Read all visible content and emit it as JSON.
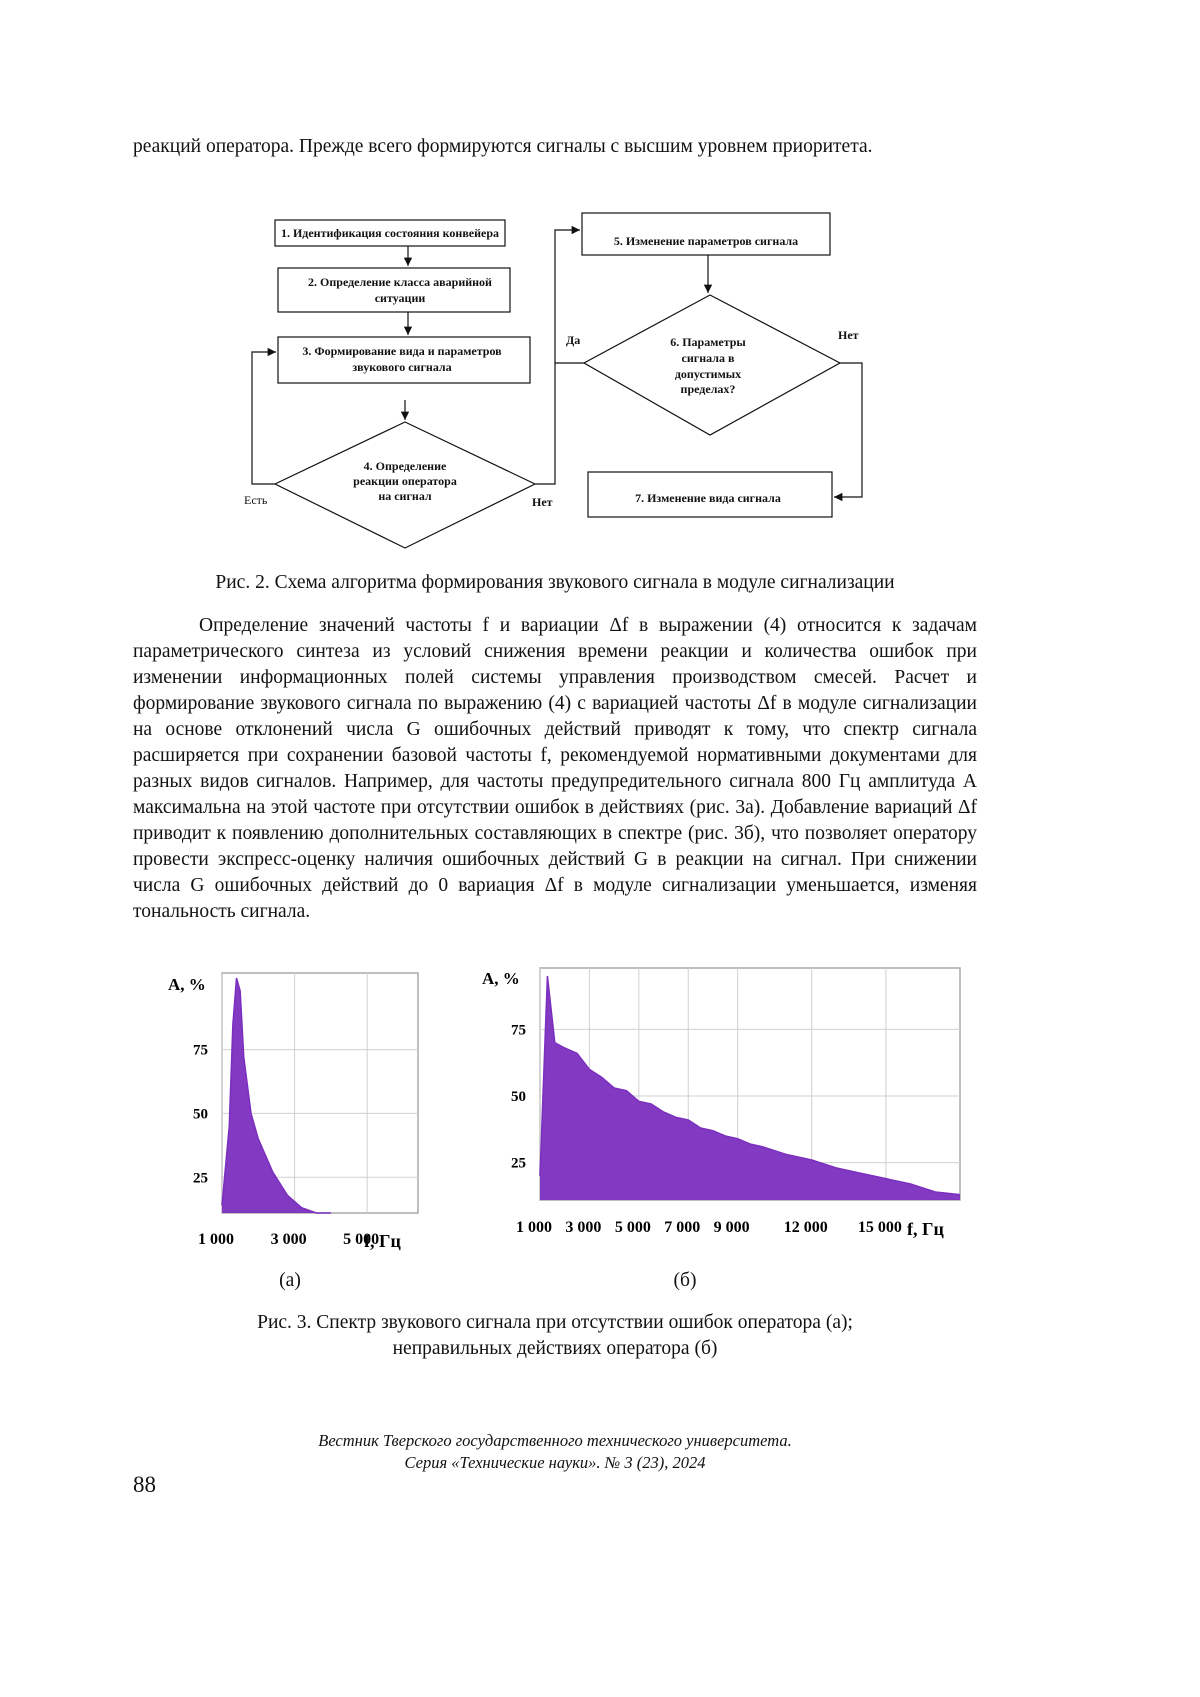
{
  "paragraphs": [
    "реакций оператора. Прежде всего формируются сигналы с высшим уровнем приоритета.",
    "Определение значений частоты f и вариации Δf в выражении (4) относится к задачам параметрического синтеза из условий снижения времени реакции и количества ошибок при изменении информационных полей системы управления производством смесей. Расчет и формирование звукового сигнала по выражению (4) с вариацией частоты Δf в модуле сигнализации на основе отклонений числа G ошибочных действий приводят к тому, что спектр сигнала расширяется при сохранении базовой частоты f, рекомендуемой нормативными документами для разных видов сигналов. Например, для частоты предупредительного сигнала 800 Гц амплитуда A максимальна на этой частоте при отсутствии ошибок в действиях (рис. 3а). Добавление вариаций Δf приводит к появлению дополнительных составляющих в спектре (рис. 3б), что позволяет оператору провести экспресс-оценку наличия ошибочных действий G в реакции на сигнал. При снижении числа G ошибочных действий до 0 вариация Δf в модуле сигнализации уменьшается, изменяя тональность сигнала."
  ],
  "figure2": {
    "nodes": [
      {
        "lines": [
          "1. Идентификация состояния конвейера"
        ]
      },
      {
        "lines": [
          "2. Определение  класса аварийной",
          "ситуации"
        ]
      },
      {
        "lines": [
          "3. Формирование вида и параметров",
          "звукового сигнала"
        ]
      },
      {
        "lines": [
          "4. Определение",
          "реакции оператора",
          "на сигнал"
        ]
      },
      {
        "lines": [
          "5. Изменение параметров сигнала"
        ]
      },
      {
        "lines": [
          "6. Параметры",
          "сигнала в",
          "допустимых",
          "пределах?"
        ]
      },
      {
        "lines": [
          "7. Изменение вида сигнала"
        ]
      }
    ],
    "edge_labels": [
      "Да",
      "Нет",
      "Нет",
      "Есть"
    ],
    "caption": "Рис. 2. Схема алгоритма формирования звукового сигнала в модуле сигнализации"
  },
  "chart_data": [
    {
      "type": "area",
      "ylabel": "A, %",
      "xlabel": "f, Гц",
      "x": [
        1000,
        1200,
        1300,
        1400,
        1500,
        1600,
        1800,
        2000,
        2400,
        2800,
        3200,
        3600,
        4000
      ],
      "values": [
        14,
        45,
        85,
        103,
        98,
        72,
        50,
        40,
        27,
        18,
        13,
        11,
        11
      ],
      "color": "#7b2fbf",
      "xlim": [
        1000,
        6400
      ],
      "ylim": [
        11,
        105
      ],
      "xticks": [
        {
          "value": 1000,
          "label": "1 000"
        },
        {
          "value": 3000,
          "label": "3 000"
        },
        {
          "value": 5000,
          "label": "5 000"
        }
      ],
      "yticks": [
        25,
        50,
        75
      ],
      "grid": true
    },
    {
      "type": "area",
      "ylabel": "A, %",
      "xlabel": "f, Гц",
      "x": [
        1000,
        1300,
        1600,
        2000,
        2500,
        3000,
        3500,
        4000,
        4500,
        5000,
        5500,
        6000,
        6500,
        7000,
        7500,
        8000,
        8500,
        9000,
        9500,
        10000,
        11000,
        12000,
        13000,
        14000,
        15000,
        16000,
        17000,
        18000
      ],
      "values": [
        20,
        95,
        70,
        68,
        66,
        60,
        57,
        53,
        52,
        48,
        47,
        44,
        42,
        41,
        38,
        37,
        35,
        34,
        32,
        31,
        28,
        26,
        23,
        21,
        19,
        17,
        14,
        13
      ],
      "color": "#7b2fbf",
      "xlim": [
        1000,
        18000
      ],
      "ylim": [
        11,
        98
      ],
      "xticks": [
        {
          "value": 1000,
          "label": "1 000"
        },
        {
          "value": 3000,
          "label": "3 000"
        },
        {
          "value": 5000,
          "label": "5 000"
        },
        {
          "value": 7000,
          "label": "7 000"
        },
        {
          "value": 9000,
          "label": "9 000"
        },
        {
          "value": 12000,
          "label": "12 000"
        },
        {
          "value": 15000,
          "label": "15 000"
        }
      ],
      "yticks": [
        25,
        50,
        75
      ],
      "grid": true
    }
  ],
  "figure3": {
    "panel_labels": [
      "(а)",
      "(б)"
    ],
    "caption": [
      "Рис. 3. Спектр звукового сигнала при отсутствии ошибок оператора (а);",
      "неправильных действиях оператора (б)"
    ]
  },
  "footer": {
    "journal": [
      "Вестник Тверского государственного технического университета.",
      "Серия «Технические науки». № 3 (23), 2024"
    ],
    "page_number": "88"
  }
}
